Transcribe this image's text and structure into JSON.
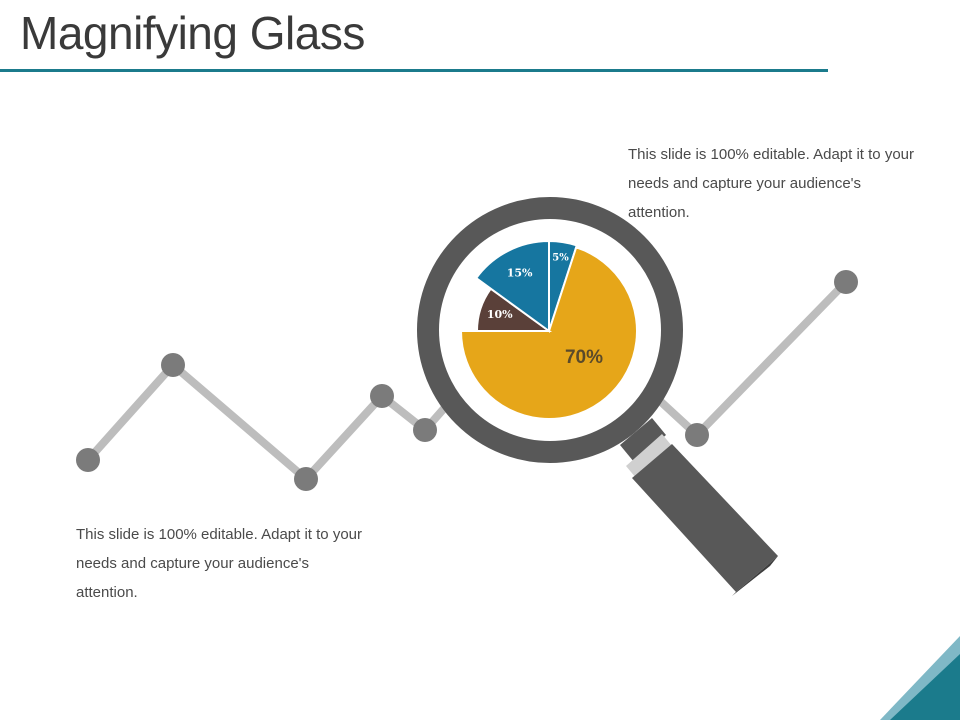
{
  "slide": {
    "title": "Magnifying Glass",
    "caption_top_right": "This slide is 100% editable. Adapt it to your needs and capture your audience's attention.",
    "caption_bottom_left": "This slide is 100% editable. Adapt it to your needs and capture your audience's attention."
  },
  "colors": {
    "accent_teal": "#1b7b8c",
    "blue": "#1676a0",
    "brown": "#5a4039",
    "gold": "#e6a619",
    "gray_dark": "#585858",
    "gray_line": "#bdbdbd",
    "gray_node": "#7b7b7b"
  },
  "chart_data": {
    "type": "pie",
    "slices": [
      {
        "label": "5%",
        "value": 5,
        "color": "#1676a0"
      },
      {
        "label": "70%",
        "value": 70,
        "color": "#e6a619"
      },
      {
        "label": "10%",
        "value": 10,
        "color": "#5a4039"
      },
      {
        "label": "15%",
        "value": 15,
        "color": "#1676a0"
      }
    ]
  }
}
